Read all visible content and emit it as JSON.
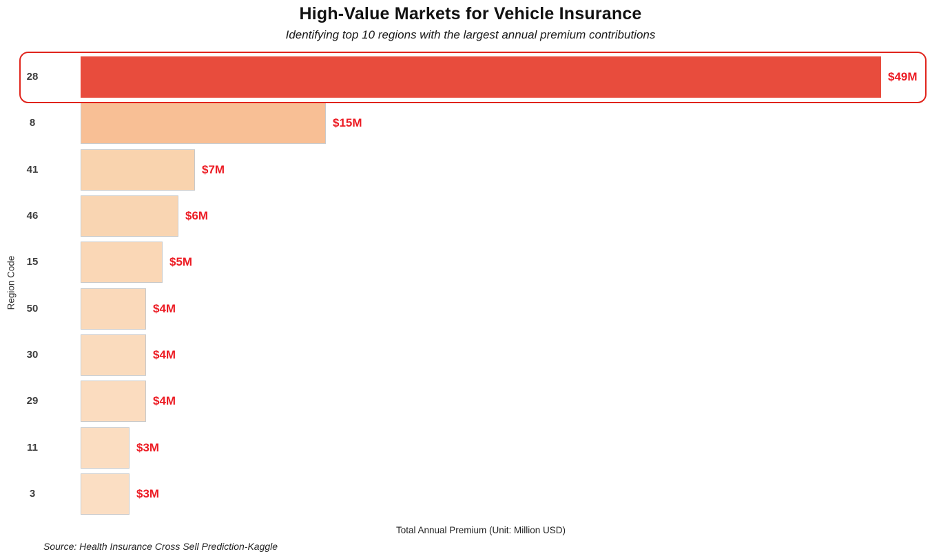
{
  "title": "High-Value Markets for Vehicle Insurance",
  "subtitle": "Identifying top 10 regions with the largest annual premium contributions",
  "source_note": "Source: Health Insurance Cross Sell Prediction-Kaggle",
  "chart_data": {
    "type": "bar",
    "orientation": "horizontal",
    "title": "High-Value Markets for Vehicle Insurance",
    "subtitle": "Identifying top 10 regions with the largest annual premium contributions",
    "xlabel": "Total Annual Premium (Unit: Million USD)",
    "ylabel": "Region Code",
    "categories": [
      "28",
      "8",
      "41",
      "46",
      "15",
      "50",
      "30",
      "29",
      "11",
      "3"
    ],
    "values": [
      49,
      15,
      7,
      6,
      5,
      4,
      4,
      4,
      3,
      3
    ],
    "value_labels": [
      "$49M",
      "$15M",
      "$7M",
      "$6M",
      "$5M",
      "$4M",
      "$4M",
      "$4M",
      "$3M",
      "$3M"
    ],
    "bar_colors": [
      "#e84c3d",
      "#f8bf95",
      "#f9d3ae",
      "#f9d5b2",
      "#fad7b6",
      "#fad9ba",
      "#fadbbd",
      "#fbdcbf",
      "#fbddc1",
      "#fbdec3"
    ],
    "bar_border_color": "#c9c9c9",
    "value_label_color": "#ec1c24",
    "tick_label_color": "#3d3d3d",
    "highlighted_category": "28",
    "highlight_border_color": "#e0241c",
    "xlim": [
      0,
      54
    ],
    "grid": false,
    "legend": "none"
  }
}
